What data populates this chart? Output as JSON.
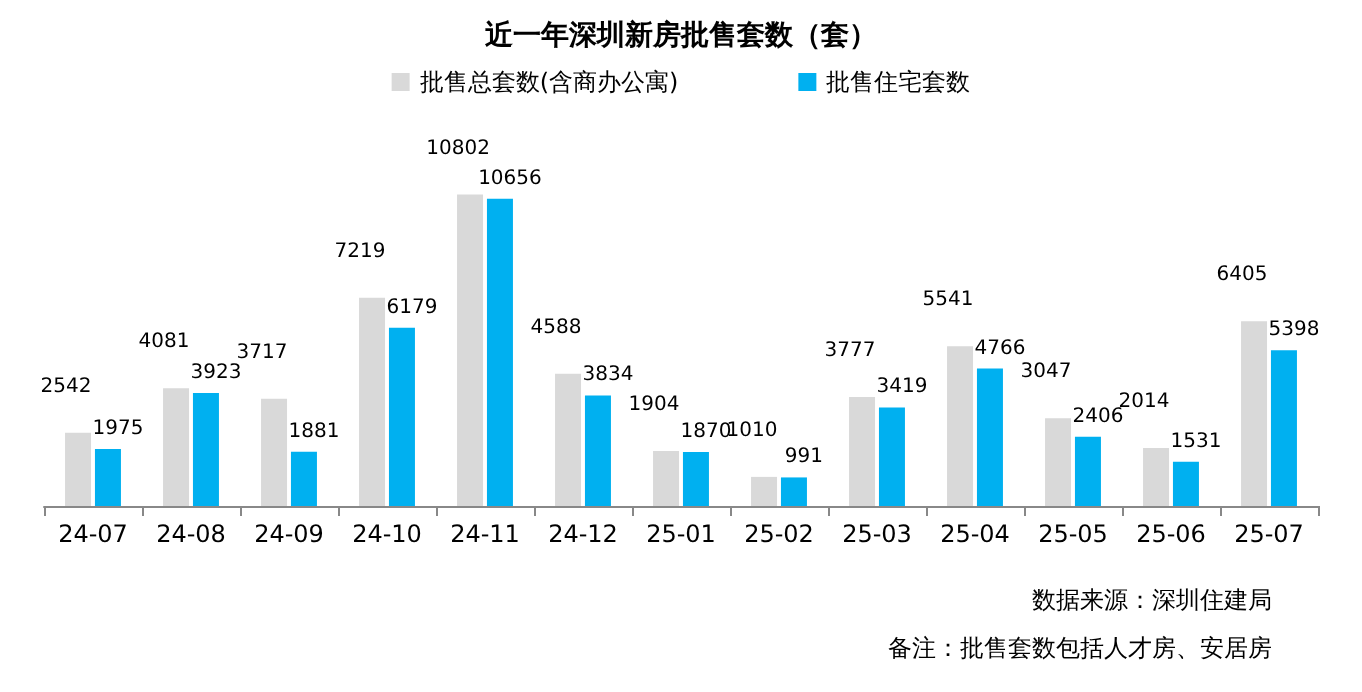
{
  "chart_data": {
    "type": "bar",
    "title": "近一年深圳新房批售套数（套）",
    "categories": [
      "24-07",
      "24-08",
      "24-09",
      "24-10",
      "24-11",
      "24-12",
      "25-01",
      "25-02",
      "25-03",
      "25-04",
      "25-05",
      "25-06",
      "25-07"
    ],
    "series": [
      {
        "name": "批售总套数(含商办公寓)",
        "color": "#d9d9d9",
        "values": [
          2542,
          4081,
          3717,
          7219,
          10802,
          4588,
          1904,
          1010,
          3777,
          5541,
          3047,
          2014,
          6405
        ]
      },
      {
        "name": "批售住宅套数",
        "color": "#00b0f0",
        "values": [
          1975,
          3923,
          1881,
          6179,
          10656,
          3834,
          1870,
          991,
          3419,
          4766,
          2406,
          1531,
          5398
        ]
      }
    ],
    "data_labels": true,
    "legend": "top",
    "annotations": [
      "数据来源：深圳住建局",
      "备注：批售套数包括人才房、安居房"
    ]
  }
}
